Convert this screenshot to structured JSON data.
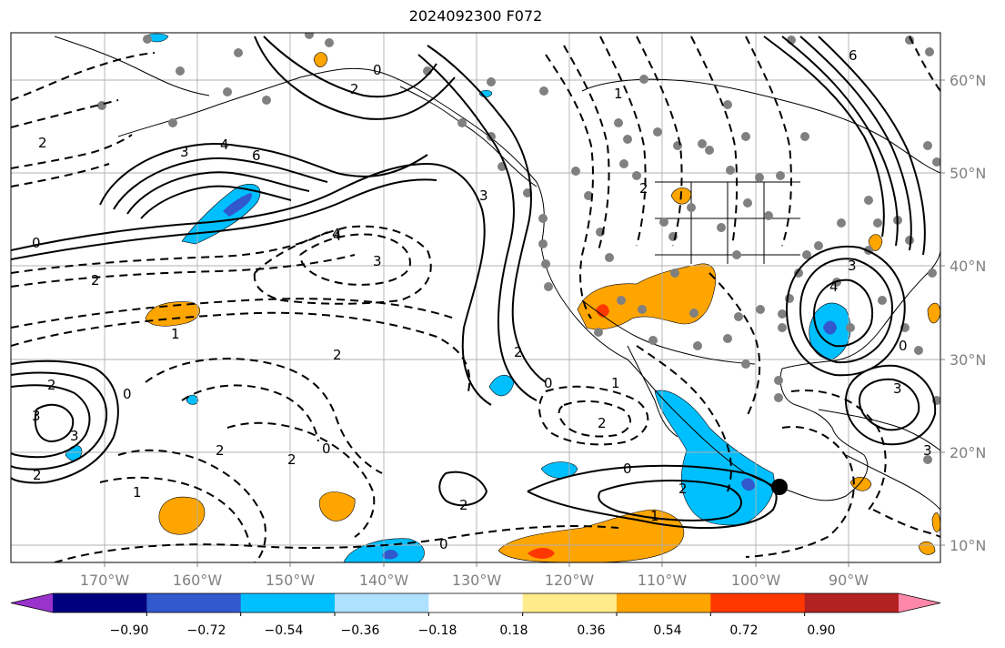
{
  "title": "2024092300 F072",
  "lon_labels": [
    "170°W",
    "160°W",
    "150°W",
    "140°W",
    "130°W",
    "120°W",
    "110°W",
    "100°W",
    "90°W"
  ],
  "lat_labels": [
    "60°N",
    "50°N",
    "40°N",
    "30°N",
    "20°N",
    "10°N"
  ],
  "colorbar": {
    "colors": [
      "#9933cc",
      "#00007f",
      "#3158cc",
      "#00bfff",
      "#aee0ff",
      "#ffffff",
      "#ffeb8a",
      "#ffa500",
      "#ff3800",
      "#b22222",
      "#ff88aa"
    ],
    "tick_labels": [
      "−0.90",
      "−0.72",
      "−0.54",
      "−0.36",
      "−0.18",
      "0.18",
      "0.36",
      "0.54",
      "0.72",
      "0.90"
    ]
  },
  "contour_labels": [
    "0",
    "2",
    "4",
    "6",
    "4",
    "3",
    "2",
    "0",
    "2",
    "3",
    "1",
    "2",
    "4",
    "3",
    "2",
    "0",
    "1",
    "2",
    "2",
    "3",
    "3",
    "2",
    "1",
    "0",
    "2",
    "2",
    "0",
    "0",
    "2",
    "1",
    "0",
    "2",
    "2",
    "1",
    "4",
    "3",
    "0",
    "6",
    "3",
    "3"
  ],
  "marker": {
    "name": "storm-center",
    "color": "#000000"
  }
}
